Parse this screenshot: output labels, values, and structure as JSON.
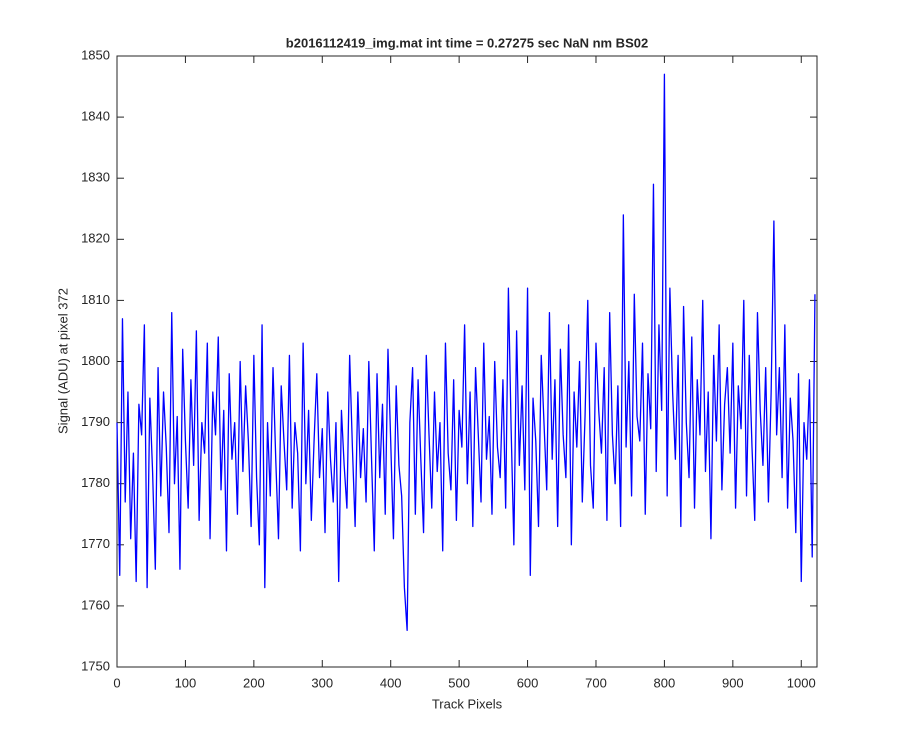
{
  "chart_data": {
    "type": "line",
    "title": "b2016112419_img.mat int time = 0.27275 sec  NaN nm BS02",
    "x_label": "Track Pixels",
    "y_label": "Signal (ADU) at pixel 372",
    "xlim": [
      0,
      1023
    ],
    "ylim": [
      1750,
      1850
    ],
    "xticks": [
      0,
      100,
      200,
      300,
      400,
      500,
      600,
      700,
      800,
      900,
      1000
    ],
    "yticks": [
      1750,
      1760,
      1770,
      1780,
      1790,
      1800,
      1810,
      1820,
      1830,
      1840,
      1850
    ],
    "x": [
      0,
      4,
      8,
      12,
      16,
      20,
      24,
      28,
      32,
      36,
      40,
      44,
      48,
      52,
      56,
      60,
      64,
      68,
      72,
      76,
      80,
      84,
      88,
      92,
      96,
      100,
      104,
      108,
      112,
      116,
      120,
      124,
      128,
      132,
      136,
      140,
      144,
      148,
      152,
      156,
      160,
      164,
      168,
      172,
      176,
      180,
      184,
      188,
      192,
      196,
      200,
      204,
      208,
      212,
      216,
      220,
      224,
      228,
      232,
      236,
      240,
      244,
      248,
      252,
      256,
      260,
      264,
      268,
      272,
      276,
      280,
      284,
      288,
      292,
      296,
      300,
      304,
      308,
      312,
      316,
      320,
      324,
      328,
      332,
      336,
      340,
      344,
      348,
      352,
      356,
      360,
      364,
      368,
      372,
      376,
      380,
      384,
      388,
      392,
      396,
      400,
      404,
      408,
      412,
      416,
      420,
      424,
      428,
      432,
      436,
      440,
      444,
      448,
      452,
      456,
      460,
      464,
      468,
      472,
      476,
      480,
      484,
      488,
      492,
      496,
      500,
      504,
      508,
      512,
      516,
      520,
      524,
      528,
      532,
      536,
      540,
      544,
      548,
      552,
      556,
      560,
      564,
      568,
      572,
      576,
      580,
      584,
      588,
      592,
      596,
      600,
      604,
      608,
      612,
      616,
      620,
      624,
      628,
      632,
      636,
      640,
      644,
      648,
      652,
      656,
      660,
      664,
      668,
      672,
      676,
      680,
      684,
      688,
      692,
      696,
      700,
      704,
      708,
      712,
      716,
      720,
      724,
      728,
      732,
      736,
      740,
      744,
      748,
      752,
      756,
      760,
      764,
      768,
      772,
      776,
      780,
      784,
      788,
      792,
      796,
      800,
      804,
      808,
      812,
      816,
      820,
      824,
      828,
      832,
      836,
      840,
      844,
      848,
      852,
      856,
      860,
      864,
      868,
      872,
      876,
      880,
      884,
      888,
      892,
      896,
      900,
      904,
      908,
      912,
      916,
      920,
      924,
      928,
      932,
      936,
      940,
      944,
      948,
      952,
      956,
      960,
      964,
      968,
      972,
      976,
      980,
      984,
      988,
      992,
      996,
      1000,
      1004,
      1008,
      1012,
      1016,
      1020
    ],
    "series": [
      {
        "color": "#0000ff",
        "values": [
          1790,
          1765,
          1807,
          1777,
          1795,
          1771,
          1785,
          1764,
          1793,
          1788,
          1806,
          1763,
          1794,
          1782,
          1766,
          1799,
          1778,
          1795,
          1786,
          1772,
          1808,
          1780,
          1791,
          1766,
          1802,
          1787,
          1776,
          1797,
          1783,
          1805,
          1774,
          1790,
          1785,
          1803,
          1771,
          1795,
          1788,
          1804,
          1779,
          1792,
          1769,
          1798,
          1784,
          1790,
          1775,
          1800,
          1782,
          1796,
          1787,
          1773,
          1801,
          1781,
          1770,
          1806,
          1763,
          1790,
          1778,
          1799,
          1784,
          1771,
          1796,
          1787,
          1779,
          1801,
          1776,
          1790,
          1785,
          1769,
          1803,
          1780,
          1792,
          1774,
          1787,
          1798,
          1781,
          1789,
          1772,
          1795,
          1784,
          1777,
          1790,
          1764,
          1792,
          1783,
          1776,
          1801,
          1786,
          1773,
          1795,
          1781,
          1789,
          1777,
          1800,
          1784,
          1769,
          1798,
          1781,
          1793,
          1775,
          1802,
          1787,
          1771,
          1796,
          1783,
          1778,
          1763,
          1756,
          1790,
          1799,
          1775,
          1797,
          1784,
          1772,
          1801,
          1788,
          1776,
          1795,
          1782,
          1790,
          1769,
          1803,
          1785,
          1779,
          1797,
          1774,
          1792,
          1786,
          1806,
          1780,
          1795,
          1773,
          1799,
          1788,
          1777,
          1803,
          1784,
          1791,
          1775,
          1800,
          1786,
          1781,
          1797,
          1776,
          1812,
          1789,
          1770,
          1805,
          1783,
          1796,
          1779,
          1812,
          1765,
          1794,
          1787,
          1773,
          1801,
          1790,
          1779,
          1808,
          1784,
          1797,
          1773,
          1802,
          1788,
          1781,
          1806,
          1770,
          1795,
          1786,
          1800,
          1777,
          1791,
          1810,
          1783,
          1776,
          1803,
          1792,
          1785,
          1799,
          1774,
          1808,
          1788,
          1780,
          1796,
          1773,
          1824,
          1786,
          1800,
          1778,
          1811,
          1791,
          1787,
          1803,
          1775,
          1798,
          1789,
          1829,
          1782,
          1806,
          1792,
          1847,
          1778,
          1812,
          1795,
          1784,
          1801,
          1773,
          1809,
          1790,
          1781,
          1804,
          1776,
          1797,
          1788,
          1810,
          1782,
          1795,
          1771,
          1801,
          1787,
          1806,
          1779,
          1793,
          1799,
          1785,
          1803,
          1776,
          1796,
          1789,
          1810,
          1778,
          1801,
          1786,
          1774,
          1808,
          1792,
          1783,
          1799,
          1777,
          1795,
          1823,
          1788,
          1799,
          1781,
          1806,
          1776,
          1794,
          1787,
          1772,
          1798,
          1764,
          1790,
          1784,
          1797,
          1768,
          1811
        ]
      }
    ]
  }
}
